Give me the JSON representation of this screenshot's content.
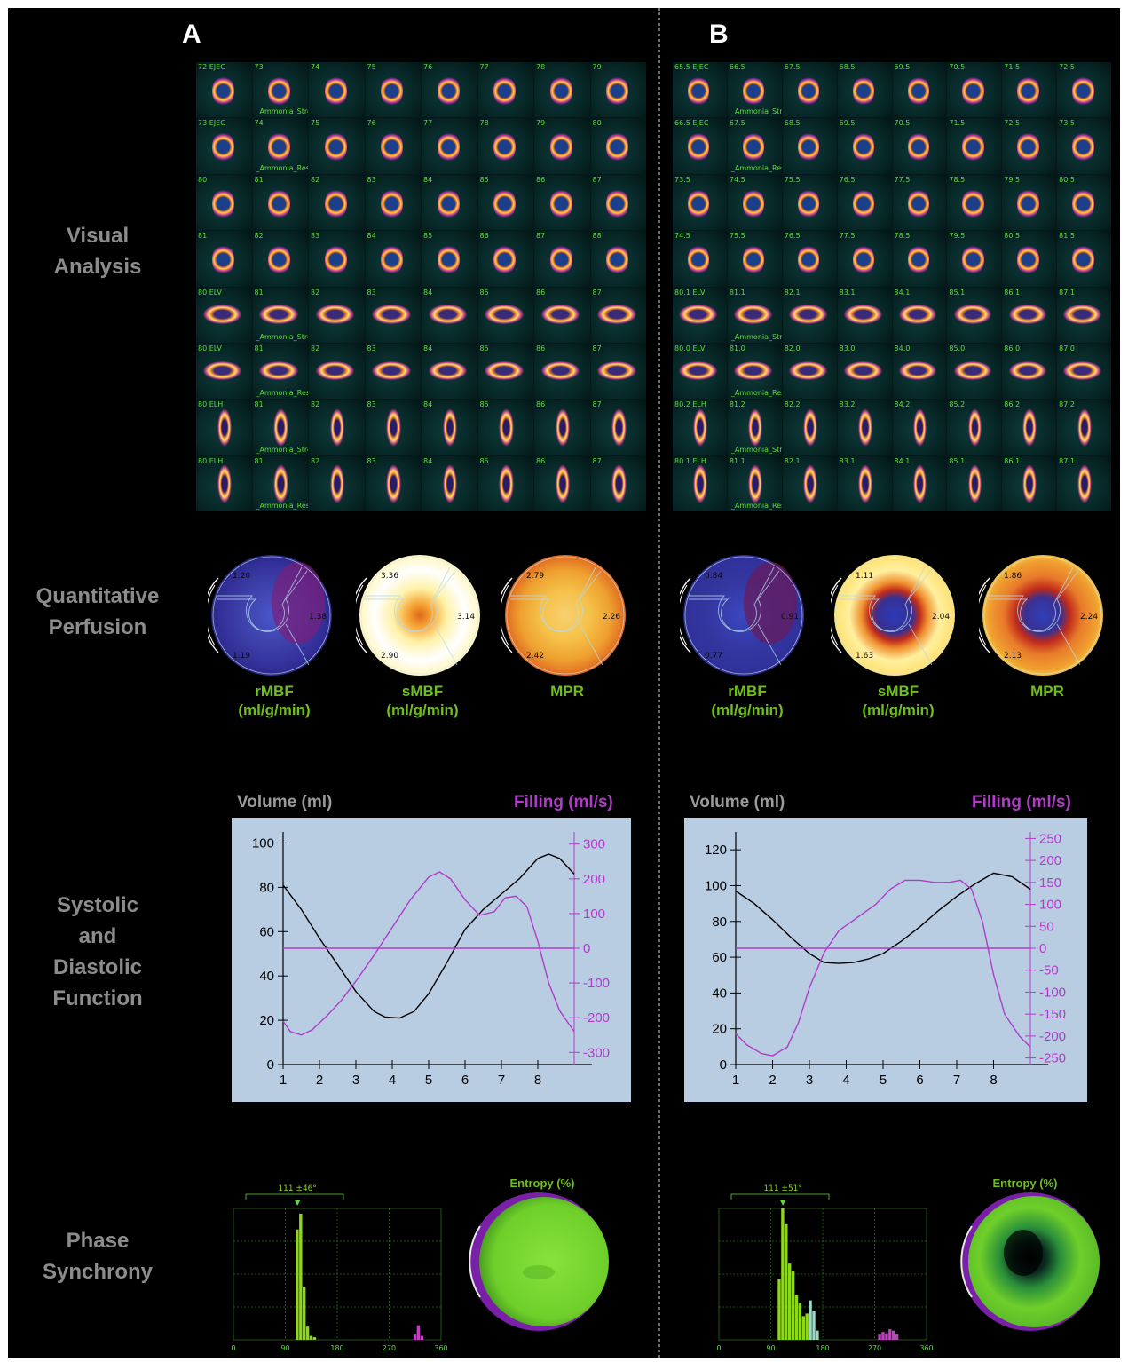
{
  "panels": {
    "a": {
      "letter": "A",
      "mosaic": {
        "rows": [
          [
            "72 EJEC",
            "73",
            "74",
            "75",
            "76",
            "77",
            "78",
            "79"
          ],
          [
            "73 EJEC",
            "74",
            "75",
            "76",
            "77",
            "78",
            "79",
            "80"
          ],
          [
            "80",
            "81",
            "82",
            "83",
            "84",
            "85",
            "86",
            "87"
          ],
          [
            "81",
            "82",
            "83",
            "84",
            "85",
            "86",
            "87",
            "88"
          ],
          [
            "80 ELV",
            "81",
            "82",
            "83",
            "84",
            "85",
            "86",
            "87"
          ],
          [
            "80 ELV",
            "81",
            "82",
            "83",
            "84",
            "85",
            "86",
            "87"
          ],
          [
            "80 ELH",
            "81",
            "82",
            "83",
            "84",
            "85",
            "86",
            "87"
          ],
          [
            "80 ELH",
            "81",
            "82",
            "83",
            "84",
            "85",
            "86",
            "87"
          ]
        ],
        "row_notes": [
          "_Ammonia_Stre",
          "_Ammonia_Res",
          "",
          "",
          "_Ammonia_Stre",
          "_Ammonia_Res",
          "_Ammonia_Stre",
          "_Ammonia_Res"
        ]
      },
      "polar": [
        {
          "values": [
            "1.20",
            "1.38",
            "1.19"
          ],
          "caption_1": "rMBF",
          "caption_2": "(ml/g/min)"
        },
        {
          "values": [
            "3.36",
            "3.14",
            "2.90"
          ],
          "caption_1": "sMBF",
          "caption_2": "(ml/g/min)"
        },
        {
          "values": [
            "2.79",
            "2.26",
            "2.42"
          ],
          "caption_1": "MPR",
          "caption_2": ""
        }
      ],
      "function_chart": {
        "left_title": "Volume (ml)",
        "right_title": "Filling (ml/s)"
      },
      "phase": {
        "histogram_label": "111 ±46°",
        "entropy_title": "Entropy (%)"
      }
    },
    "b": {
      "letter": "B",
      "mosaic": {
        "rows": [
          [
            "65.5 EJEC",
            "66.5",
            "67.5",
            "68.5",
            "69.5",
            "70.5",
            "71.5",
            "72.5"
          ],
          [
            "66.5 EJEC",
            "67.5",
            "68.5",
            "69.5",
            "70.5",
            "71.5",
            "72.5",
            "73.5"
          ],
          [
            "73.5",
            "74.5",
            "75.5",
            "76.5",
            "77.5",
            "78.5",
            "79.5",
            "80.5"
          ],
          [
            "74.5",
            "75.5",
            "76.5",
            "77.5",
            "78.5",
            "79.5",
            "80.5",
            "81.5"
          ],
          [
            "80.1 ELV",
            "81.1",
            "82.1",
            "83.1",
            "84.1",
            "85.1",
            "86.1",
            "87.1"
          ],
          [
            "80.0 ELV",
            "81.0",
            "82.0",
            "83.0",
            "84.0",
            "85.0",
            "86.0",
            "87.0"
          ],
          [
            "80.2 ELH",
            "81.2",
            "82.2",
            "83.2",
            "84.2",
            "85.2",
            "86.2",
            "87.2"
          ],
          [
            "80.1 ELH",
            "81.1",
            "82.1",
            "83.1",
            "84.1",
            "85.1",
            "86.1",
            "87.1"
          ]
        ],
        "row_notes": [
          "_Ammonia_Stre",
          "_Ammonia_Res",
          "",
          "",
          "_Ammonia_Stre",
          "_Ammonia_Res",
          "_Ammonia_Stre",
          "_Ammonia_Res"
        ]
      },
      "polar": [
        {
          "values": [
            "0.84",
            "0.91",
            "0.77"
          ],
          "caption_1": "rMBF",
          "caption_2": "(ml/g/min)"
        },
        {
          "values": [
            "1.11",
            "2.04",
            "1.63"
          ],
          "caption_1": "sMBF",
          "caption_2": "(ml/g/min)"
        },
        {
          "values": [
            "1.86",
            "2.24",
            "2.13"
          ],
          "caption_1": "MPR",
          "caption_2": ""
        }
      ],
      "function_chart": {
        "left_title": "Volume (ml)",
        "right_title": "Filling (ml/s)"
      },
      "phase": {
        "histogram_label": "111 ±51°",
        "entropy_title": "Entropy (%)"
      }
    }
  },
  "row_labels": {
    "visual": [
      "Visual",
      "Analysis"
    ],
    "quant": [
      "Quantitative",
      "Perfusion"
    ],
    "function": [
      "Systolic",
      "and",
      "Diastolic",
      "Function"
    ],
    "phase": [
      "Phase",
      "Synchrony"
    ]
  },
  "colors": {
    "volume_curve": "#000000",
    "filling_curve": "#b03cc8",
    "caption_green": "#6fbf1c",
    "histogram_green": "#8ed81c",
    "plot_background": "#b8cce2"
  },
  "chart_data": [
    {
      "type": "line",
      "panel": "A",
      "x_ticks": [
        1,
        2,
        3,
        4,
        5,
        6,
        7,
        8
      ],
      "xlim": [
        1,
        9
      ],
      "y_left": {
        "label": "Volume (ml)",
        "ticks": [
          0,
          20,
          40,
          60,
          80,
          100
        ],
        "ylim": [
          0,
          105
        ]
      },
      "y_right": {
        "label": "Filling (ml/s)",
        "ticks": [
          -300,
          -200,
          -100,
          0,
          100,
          200,
          300
        ],
        "ylim": [
          -335,
          335
        ]
      },
      "series": [
        {
          "axis": "left",
          "x": [
            1,
            1.5,
            2,
            2.5,
            3,
            3.5,
            3.8,
            4.2,
            4.6,
            5,
            5.5,
            6,
            6.5,
            7,
            7.5,
            8,
            8.3,
            8.6,
            9
          ],
          "y": [
            81,
            70,
            57,
            45,
            33,
            24,
            21.5,
            21,
            24,
            32,
            46,
            61,
            70,
            77,
            84,
            93,
            95,
            93,
            86
          ]
        },
        {
          "axis": "right",
          "x": [
            1,
            1.2,
            1.5,
            1.8,
            2.2,
            2.6,
            3,
            3.5,
            4,
            4.5,
            5,
            5.3,
            5.6,
            6,
            6.4,
            6.8,
            7.1,
            7.4,
            7.7,
            8,
            8.3,
            8.6,
            9
          ],
          "y": [
            -210,
            -240,
            -250,
            -235,
            -195,
            -150,
            -95,
            -20,
            60,
            140,
            205,
            220,
            200,
            140,
            95,
            105,
            145,
            150,
            120,
            20,
            -100,
            -180,
            -240
          ]
        },
        {
          "axis": "right",
          "x": [
            1,
            9
          ],
          "y": [
            0,
            0
          ]
        }
      ]
    },
    {
      "type": "line",
      "panel": "B",
      "x_ticks": [
        1,
        2,
        3,
        4,
        5,
        6,
        7,
        8
      ],
      "xlim": [
        1,
        9
      ],
      "y_left": {
        "label": "Volume (ml)",
        "ticks": [
          0,
          20,
          40,
          60,
          80,
          100,
          120
        ],
        "ylim": [
          0,
          130
        ]
      },
      "y_right": {
        "label": "Filling (ml/s)",
        "ticks": [
          -250,
          -200,
          -150,
          -100,
          -50,
          0,
          50,
          100,
          150,
          200,
          250
        ],
        "ylim": [
          -265,
          265
        ]
      },
      "series": [
        {
          "axis": "left",
          "x": [
            1,
            1.5,
            2,
            2.5,
            3,
            3.4,
            3.8,
            4.2,
            4.6,
            5,
            5.5,
            6,
            6.5,
            7,
            7.5,
            8,
            8.5,
            9
          ],
          "y": [
            97,
            90,
            81,
            71,
            62,
            57,
            56.5,
            57,
            59,
            62,
            69,
            77,
            86,
            94,
            101,
            107,
            105,
            98
          ]
        },
        {
          "axis": "right",
          "x": [
            1,
            1.3,
            1.7,
            2,
            2.4,
            2.7,
            3,
            3.4,
            3.8,
            4.3,
            4.8,
            5.2,
            5.6,
            6,
            6.4,
            6.8,
            7.1,
            7.4,
            7.7,
            8,
            8.3,
            8.7,
            9
          ],
          "y": [
            -195,
            -220,
            -240,
            -245,
            -225,
            -170,
            -90,
            -10,
            40,
            70,
            100,
            135,
            155,
            155,
            150,
            150,
            155,
            135,
            60,
            -60,
            -150,
            -200,
            -225
          ]
        },
        {
          "axis": "right",
          "x": [
            1,
            9
          ],
          "y": [
            0,
            0
          ]
        }
      ]
    },
    {
      "type": "bar",
      "panel": "A",
      "title": "111 ±46°",
      "x_ticks": [
        0,
        90,
        180,
        270,
        360
      ],
      "xlim": [
        0,
        360
      ],
      "bin_width": 6,
      "bins": [
        {
          "x": 108,
          "value": 84,
          "color": "#8ed81c"
        },
        {
          "x": 114,
          "value": 96,
          "color": "#8ed81c"
        },
        {
          "x": 120,
          "value": 40,
          "color": "#8ed81c"
        },
        {
          "x": 126,
          "value": 10,
          "color": "#8ed81c"
        },
        {
          "x": 132,
          "value": 3,
          "color": "#8ed81c"
        },
        {
          "x": 138,
          "value": 2,
          "color": "#8ed81c"
        },
        {
          "x": 312,
          "value": 4,
          "color": "#c040c0"
        },
        {
          "x": 318,
          "value": 11,
          "color": "#c040c0"
        },
        {
          "x": 324,
          "value": 3,
          "color": "#c040c0"
        }
      ]
    },
    {
      "type": "bar",
      "panel": "B",
      "title": "111 ±51°",
      "x_ticks": [
        0,
        90,
        180,
        270,
        360
      ],
      "xlim": [
        0,
        360
      ],
      "bin_width": 6,
      "bins": [
        {
          "x": 102,
          "value": 46,
          "color": "#8ed81c"
        },
        {
          "x": 108,
          "value": 100,
          "color": "#8ed81c"
        },
        {
          "x": 114,
          "value": 88,
          "color": "#8ed81c"
        },
        {
          "x": 120,
          "value": 58,
          "color": "#8ed81c"
        },
        {
          "x": 126,
          "value": 52,
          "color": "#8ed81c"
        },
        {
          "x": 132,
          "value": 34,
          "color": "#8ed81c"
        },
        {
          "x": 138,
          "value": 28,
          "color": "#8ed81c"
        },
        {
          "x": 144,
          "value": 18,
          "color": "#8ed81c"
        },
        {
          "x": 150,
          "value": 20,
          "color": "#8ed81c"
        },
        {
          "x": 156,
          "value": 30,
          "color": "#9ed8c8"
        },
        {
          "x": 162,
          "value": 22,
          "color": "#9ed8c8"
        },
        {
          "x": 168,
          "value": 7,
          "color": "#9ed8c8"
        },
        {
          "x": 276,
          "value": 4,
          "color": "#c040c0"
        },
        {
          "x": 282,
          "value": 6,
          "color": "#c040c0"
        },
        {
          "x": 288,
          "value": 5,
          "color": "#c040c0"
        },
        {
          "x": 294,
          "value": 8,
          "color": "#c040c0"
        },
        {
          "x": 300,
          "value": 7,
          "color": "#c040c0"
        },
        {
          "x": 306,
          "value": 4,
          "color": "#c040c0"
        }
      ]
    }
  ]
}
